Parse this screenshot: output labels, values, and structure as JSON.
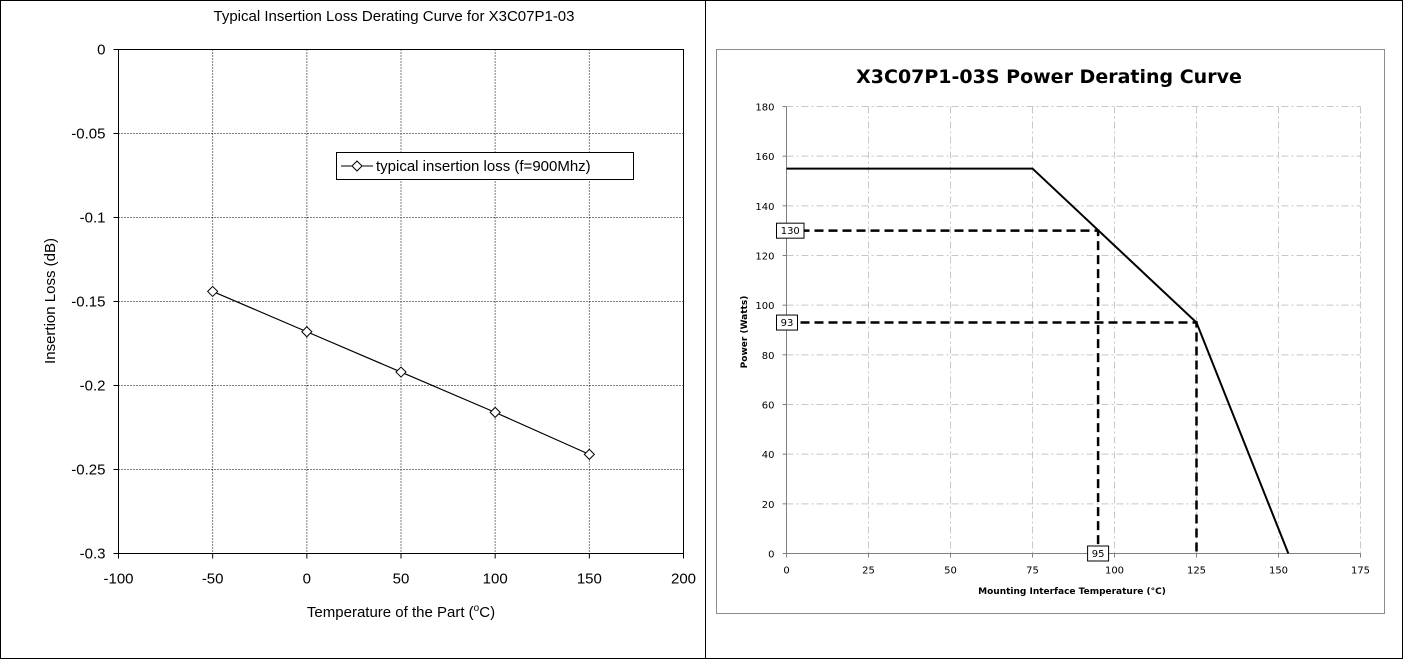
{
  "chart_data": [
    {
      "type": "line",
      "title": "Typical Insertion Loss Derating Curve for X3C07P1-03",
      "xlabel_main": "Temperature of the Part (",
      "xlabel_sup": "o",
      "xlabel_tail": "C)",
      "ylabel": "Insertion Loss (dB)",
      "xlim": [
        -100,
        200
      ],
      "ylim": [
        -0.3,
        0
      ],
      "x_ticks": [
        "-100",
        "-50",
        "0",
        "50",
        "100",
        "150",
        "200"
      ],
      "y_ticks": [
        "0",
        "-0.05",
        "-0.1",
        "-0.15",
        "-0.2",
        "-0.25",
        "-0.3"
      ],
      "grid": true,
      "legend_position": "upper-right",
      "series": [
        {
          "name": "typical insertion loss (f=900Mhz)",
          "marker": "diamond",
          "color": "#000000",
          "x": [
            -50,
            0,
            50,
            100,
            150
          ],
          "y": [
            -0.144,
            -0.168,
            -0.192,
            -0.216,
            -0.241
          ]
        }
      ]
    },
    {
      "type": "line",
      "title": "X3C07P1-03S Power Derating Curve",
      "xlabel": "Mounting Interface Temperature (°C)",
      "ylabel": "Power (Watts)",
      "xlim": [
        0,
        175
      ],
      "ylim": [
        0,
        180
      ],
      "x_ticks": [
        "0",
        "25",
        "50",
        "75",
        "100",
        "125",
        "150",
        "175"
      ],
      "y_ticks": [
        "0",
        "20",
        "40",
        "60",
        "80",
        "100",
        "120",
        "140",
        "160",
        "180"
      ],
      "grid": true,
      "series": [
        {
          "color": "#000000",
          "x": [
            0,
            75,
            125,
            153
          ],
          "y": [
            155,
            155,
            93,
            0
          ]
        }
      ],
      "annotations": [
        {
          "label": "130",
          "x": 95,
          "y": 130
        },
        {
          "label": "93",
          "x": 125,
          "y": 93
        },
        {
          "label": "95",
          "x": 95,
          "y": 0
        }
      ]
    }
  ]
}
